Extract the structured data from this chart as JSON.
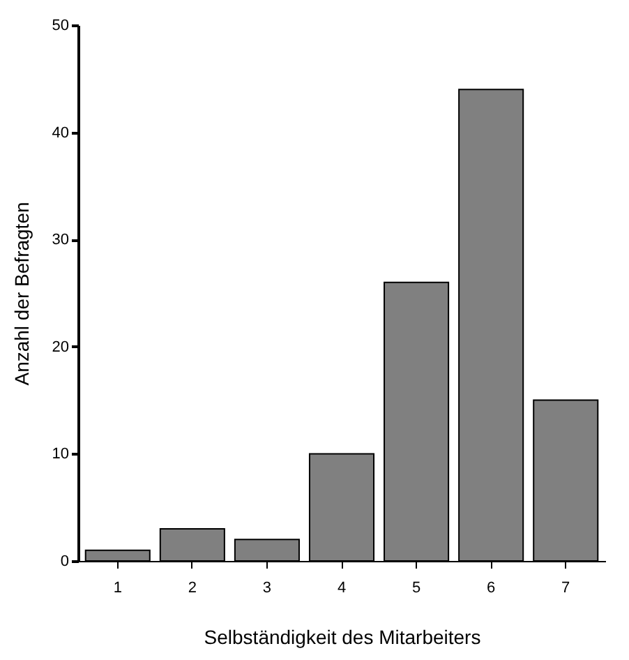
{
  "chart_data": {
    "type": "bar",
    "xlabel": "Selbständigkeit des Mitarbeiters",
    "ylabel": "Anzahl der Befragten",
    "categories": [
      "1",
      "2",
      "3",
      "4",
      "5",
      "6",
      "7"
    ],
    "values": [
      1,
      3,
      2,
      10,
      26,
      44,
      15
    ],
    "color": "#808080",
    "ylim": [
      0,
      50
    ],
    "yticks": [
      0,
      10,
      20,
      30,
      40,
      50
    ],
    "grid": false
  }
}
